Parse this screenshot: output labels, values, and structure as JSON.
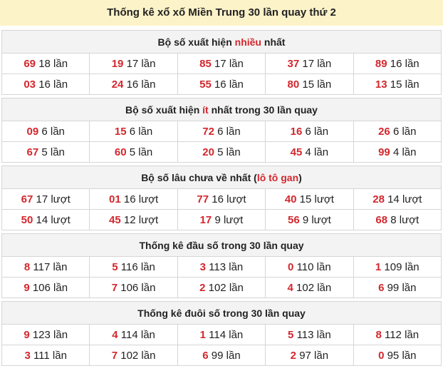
{
  "title": "Thống kê xổ xố Miền Trung 30 lần quay thứ 2",
  "accent_color": "#d3272d",
  "sections": [
    {
      "title": {
        "pre": "Bộ số xuất hiện ",
        "hl": "nhiều",
        "post": " nhất"
      },
      "rows": [
        [
          [
            "69",
            "18 lần"
          ],
          [
            "19",
            "17 lần"
          ],
          [
            "85",
            "17 lần"
          ],
          [
            "37",
            "17 lần"
          ],
          [
            "89",
            "16 lần"
          ]
        ],
        [
          [
            "03",
            "16 lần"
          ],
          [
            "24",
            "16 lần"
          ],
          [
            "55",
            "16 lần"
          ],
          [
            "80",
            "15 lần"
          ],
          [
            "13",
            "15 lần"
          ]
        ]
      ]
    },
    {
      "title": {
        "pre": "Bộ số xuất hiện ",
        "hl": "ít",
        "post": " nhất trong 30 lần quay"
      },
      "rows": [
        [
          [
            "09",
            "6 lần"
          ],
          [
            "15",
            "6 lần"
          ],
          [
            "72",
            "6 lần"
          ],
          [
            "16",
            "6 lần"
          ],
          [
            "26",
            "6 lần"
          ]
        ],
        [
          [
            "67",
            "5 lần"
          ],
          [
            "60",
            "5 lần"
          ],
          [
            "20",
            "5 lần"
          ],
          [
            "45",
            "4 lần"
          ],
          [
            "99",
            "4 lần"
          ]
        ]
      ]
    },
    {
      "title": {
        "pre": "Bộ số lâu chưa về nhất (",
        "hl": "lô tô gan",
        "post": ")"
      },
      "rows": [
        [
          [
            "67",
            "17 lượt"
          ],
          [
            "01",
            "16 lượt"
          ],
          [
            "77",
            "16 lượt"
          ],
          [
            "40",
            "15 lượt"
          ],
          [
            "28",
            "14 lượt"
          ]
        ],
        [
          [
            "50",
            "14 lượt"
          ],
          [
            "45",
            "12 lượt"
          ],
          [
            "17",
            "9 lượt"
          ],
          [
            "56",
            "9 lượt"
          ],
          [
            "68",
            "8 lượt"
          ]
        ]
      ]
    },
    {
      "title": {
        "pre": "Thống kê đầu số trong 30 lần quay",
        "hl": "",
        "post": ""
      },
      "rows": [
        [
          [
            "8",
            "117 lần"
          ],
          [
            "5",
            "116 lần"
          ],
          [
            "3",
            "113 lần"
          ],
          [
            "0",
            "110 lần"
          ],
          [
            "1",
            "109 lần"
          ]
        ],
        [
          [
            "9",
            "106 lần"
          ],
          [
            "7",
            "106 lần"
          ],
          [
            "2",
            "102 lần"
          ],
          [
            "4",
            "102 lần"
          ],
          [
            "6",
            "99 lần"
          ]
        ]
      ]
    },
    {
      "title": {
        "pre": "Thống kê đuôi số trong 30 lần quay",
        "hl": "",
        "post": ""
      },
      "rows": [
        [
          [
            "9",
            "123 lần"
          ],
          [
            "4",
            "114 lần"
          ],
          [
            "1",
            "114 lần"
          ],
          [
            "5",
            "113 lần"
          ],
          [
            "8",
            "112 lần"
          ]
        ],
        [
          [
            "3",
            "111 lần"
          ],
          [
            "7",
            "102 lần"
          ],
          [
            "6",
            "99 lần"
          ],
          [
            "2",
            "97 lần"
          ],
          [
            "0",
            "95 lần"
          ]
        ]
      ]
    }
  ]
}
